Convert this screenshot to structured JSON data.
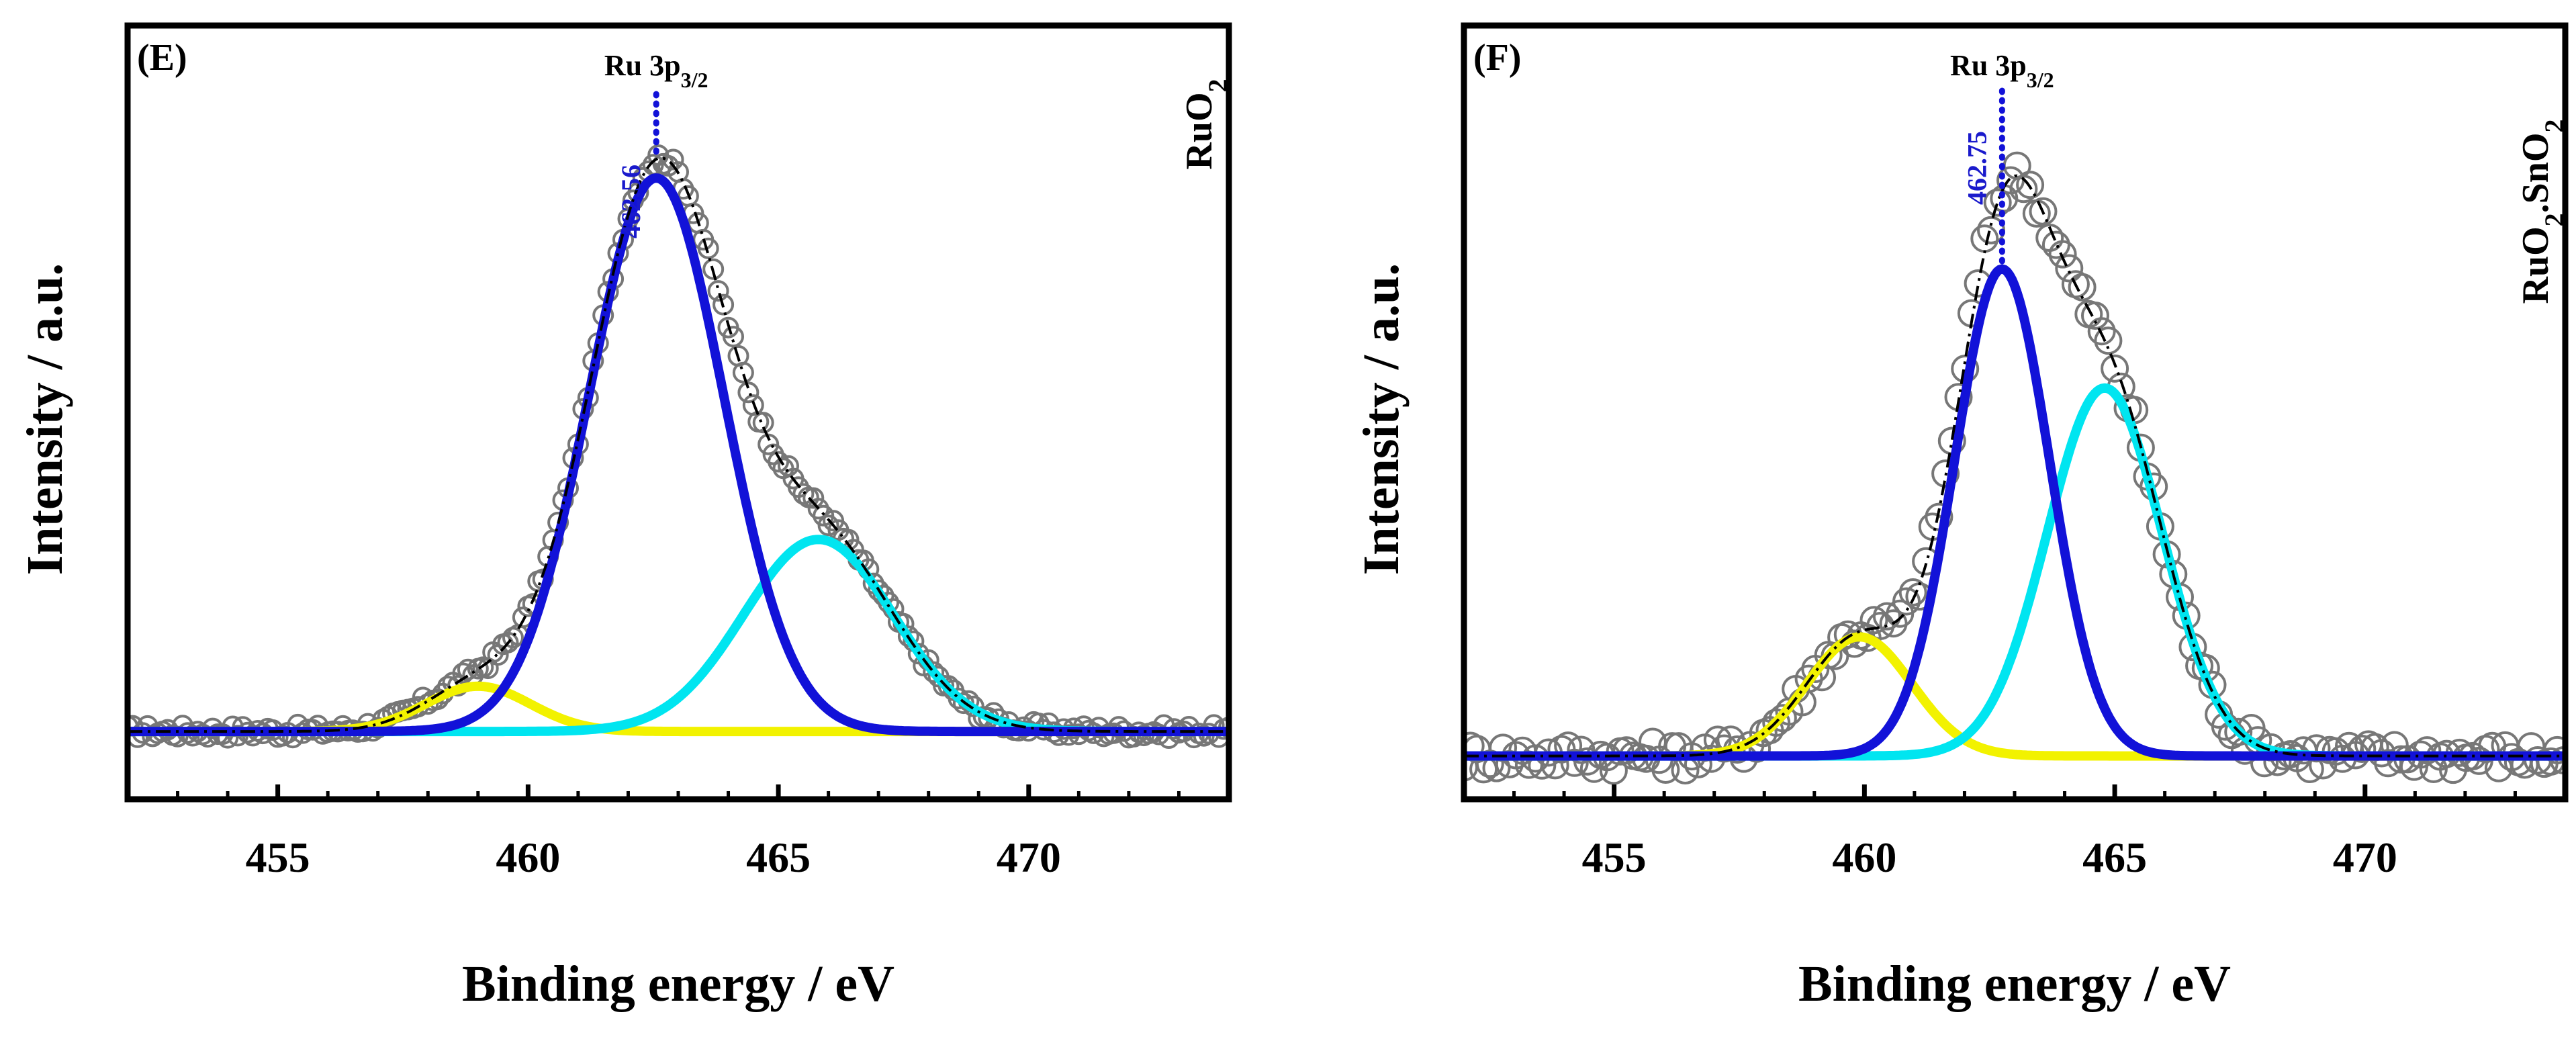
{
  "chart_data": [
    {
      "type": "line",
      "panel_label": "(E)",
      "sample_label": "RuO2",
      "peak_label": "Ru 3p3/2",
      "peak_position_label": "462.56",
      "peak_position": 462.56,
      "xlabel": "Binding energy / eV",
      "ylabel": "Intensity / a.u.",
      "xlim": [
        452,
        474
      ],
      "ylim": [
        -0.12,
        1.25
      ],
      "x_ticks": [
        455,
        460,
        465,
        470
      ],
      "x_tick_labels": [
        "455",
        "460",
        "465",
        "470"
      ],
      "grid": false,
      "series": [
        {
          "name": "Ru 3p3/2 component",
          "color": "#1212d8",
          "center": 462.56,
          "height": 0.98,
          "sigma": 1.35
        },
        {
          "name": "satellite component",
          "color": "#00e5f0",
          "center": 465.8,
          "height": 0.34,
          "sigma": 1.5
        },
        {
          "name": "minor component",
          "color": "#f2f200",
          "center": 459.0,
          "height": 0.08,
          "sigma": 1.05
        },
        {
          "name": "experimental data",
          "color": "#777777",
          "marker": "open-circle",
          "x_start": 452.0,
          "x_end": 474.0,
          "step": 0.1
        },
        {
          "name": "envelope fit",
          "color": "#000000"
        }
      ]
    },
    {
      "type": "line",
      "panel_label": "(F)",
      "sample_label": "RuO2.SnO2",
      "peak_label": "Ru 3p3/2",
      "peak_position_label": "462.75",
      "peak_position": 462.75,
      "xlabel": "Binding energy / eV",
      "ylabel": "Intensity / a.u.",
      "xlim": [
        452,
        474
      ],
      "ylim": [
        -0.08,
        1.35
      ],
      "x_ticks": [
        455,
        460,
        465,
        470
      ],
      "x_tick_labels": [
        "455",
        "460",
        "465",
        "470"
      ],
      "grid": false,
      "series": [
        {
          "name": "Ru 3p3/2 component",
          "color": "#1212d8",
          "center": 462.75,
          "height": 0.9,
          "sigma": 0.95
        },
        {
          "name": "satellite component",
          "color": "#00e5f0",
          "center": 464.8,
          "height": 0.68,
          "sigma": 1.15
        },
        {
          "name": "minor component",
          "color": "#f2f200",
          "center": 459.9,
          "height": 0.22,
          "sigma": 1.05
        },
        {
          "name": "experimental data",
          "color": "#777777",
          "marker": "open-circle",
          "x_start": 452.0,
          "x_end": 474.0,
          "step": 0.13
        },
        {
          "name": "envelope fit",
          "color": "#000000"
        }
      ]
    }
  ]
}
